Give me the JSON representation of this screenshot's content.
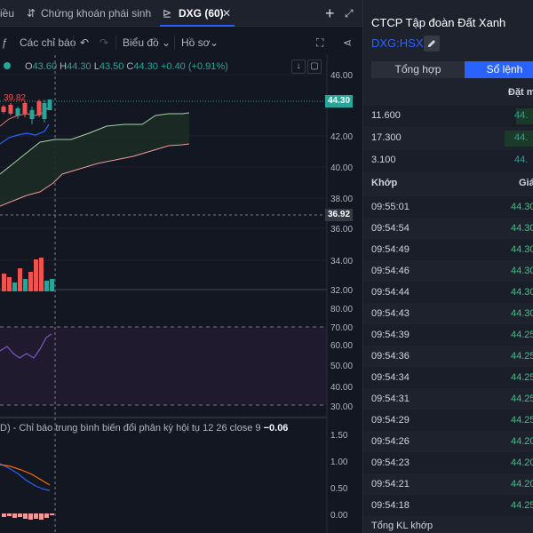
{
  "tabs": [
    {
      "label": "iều"
    },
    {
      "label": "Chứng khoán phái sinh"
    },
    {
      "label": "DXG (60)"
    }
  ],
  "toolbar": {
    "alerts": "Các chỉ báo",
    "chart_type": "Biểu đồ",
    "profile": "Hồ sơ"
  },
  "ohlc": {
    "o_label": "O",
    "o": "43.60",
    "h_label": "H",
    "h": "44.30",
    "l_label": "L",
    "l": "43.50",
    "c_label": "C",
    "c": "44.30",
    "change": "+0.40 (+0.91%)"
  },
  "annotation": "39.82",
  "price_axis": [
    "46.00",
    "42.00",
    "40.00",
    "38.00",
    "36.00",
    "34.00",
    "32.00"
  ],
  "last_price_tag": "44.30",
  "ref_price_tag": "36.92",
  "rsi_axis": [
    "80.00",
    "70.00",
    "60.00",
    "50.00",
    "40.00",
    "30.00"
  ],
  "macd_axis": [
    "1.50",
    "1.00",
    "0.50",
    "0.00"
  ],
  "macd_title": {
    "prefix": "D) - Chỉ báo trung bình biến đổi phân kỳ hội tụ",
    "params": "12 26 close 9",
    "value": "−0.06"
  },
  "colors": {
    "up": "#26a69a",
    "down": "#ef5350",
    "accent": "#2962ff",
    "rsi": "#7e57c2",
    "macd": "#2962ff",
    "signal": "#ff6d00"
  },
  "panel": {
    "title": "CTCP Tập đoàn Đất Xanh",
    "ticker": "DXG:HSX",
    "tab_summary": "Tổng hợp",
    "tab_orders": "Sổ lệnh",
    "header_order": "Đặt m",
    "order_rows": [
      {
        "qty": "11.600",
        "price": "44."
      },
      {
        "qty": "17.300",
        "price": "44."
      },
      {
        "qty": "3.100",
        "price": "44."
      }
    ],
    "trades_header": "Khớp",
    "trades_price_header": "Giá",
    "trades": [
      {
        "time": "09:55:01",
        "price": "44.30"
      },
      {
        "time": "09:54:54",
        "price": "44.30"
      },
      {
        "time": "09:54:49",
        "price": "44.30"
      },
      {
        "time": "09:54:46",
        "price": "44.30"
      },
      {
        "time": "09:54:44",
        "price": "44.30"
      },
      {
        "time": "09:54:43",
        "price": "44.30"
      },
      {
        "time": "09:54:39",
        "price": "44.25"
      },
      {
        "time": "09:54:36",
        "price": "44.25"
      },
      {
        "time": "09:54:34",
        "price": "44.25"
      },
      {
        "time": "09:54:31",
        "price": "44.25"
      },
      {
        "time": "09:54:29",
        "price": "44.25"
      },
      {
        "time": "09:54:26",
        "price": "44.20"
      },
      {
        "time": "09:54:23",
        "price": "44.20"
      },
      {
        "time": "09:54:21",
        "price": "44.20"
      },
      {
        "time": "09:54:18",
        "price": "44.25"
      }
    ],
    "footer": "Tổng KL khớp"
  }
}
